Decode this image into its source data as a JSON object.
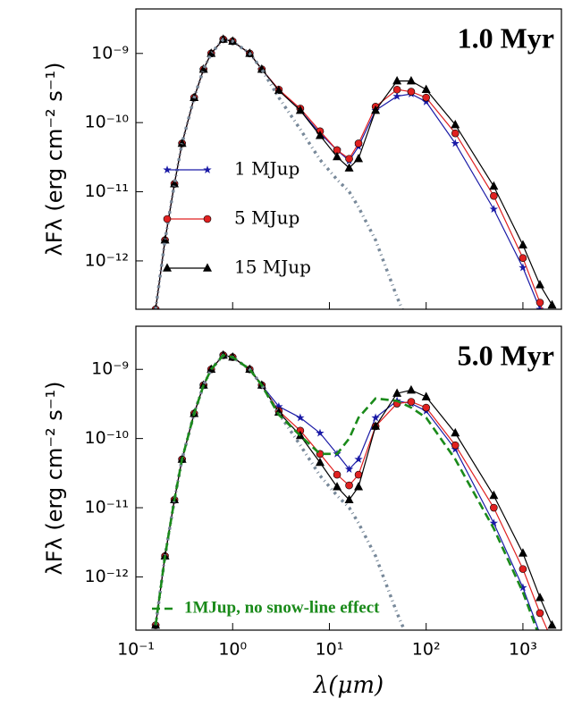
{
  "chart_data": [
    {
      "type": "line",
      "title": "1.0 Myr",
      "y_label": "λFλ (erg cm⁻² s⁻¹)",
      "xscale": "log",
      "yscale": "log",
      "xlim": [
        0.1,
        2500
      ],
      "ylim": [
        2e-13,
        4.4e-09
      ],
      "xticks": [
        0.1,
        1,
        10,
        100,
        1000
      ],
      "show_xtick_labels": false,
      "yticks": [
        {
          "value": 1e-12,
          "label": "10⁻¹²"
        },
        {
          "value": 1e-11,
          "label": "10⁻¹¹"
        },
        {
          "value": 1e-10,
          "label": "10⁻¹⁰"
        },
        {
          "value": 1e-09,
          "label": "10⁻⁹"
        }
      ],
      "x": [
        0.16,
        0.2,
        0.25,
        0.3,
        0.4,
        0.5,
        0.6,
        0.8,
        1,
        1.5,
        2,
        3,
        5,
        8,
        12,
        16,
        20,
        30,
        50,
        70,
        100,
        200,
        500,
        1000,
        1500,
        2000
      ],
      "series": [
        {
          "name": "1 MJup",
          "color": "#1a1aa6",
          "marker": "star",
          "linestyle": "solid",
          "values": [
            2e-13,
            2e-12,
            1.3e-11,
            5e-11,
            2.3e-10,
            5.9e-10,
            1e-09,
            1.6e-09,
            1.5e-09,
            1e-09,
            5.9e-10,
            3e-10,
            1.5e-10,
            7e-11,
            4e-11,
            2.8e-11,
            4.5e-11,
            1.5e-10,
            2.4e-10,
            2.6e-10,
            2e-10,
            5e-11,
            5.6e-12,
            8e-13,
            2e-13,
            5e-14
          ]
        },
        {
          "name": "5 MJup",
          "color": "#e02020",
          "marker": "circle",
          "linestyle": "solid",
          "values": [
            2e-13,
            2e-12,
            1.3e-11,
            5e-11,
            2.3e-10,
            5.9e-10,
            1e-09,
            1.6e-09,
            1.5e-09,
            1e-09,
            5.9e-10,
            3e-10,
            1.6e-10,
            7.5e-11,
            4e-11,
            3e-11,
            5e-11,
            1.7e-10,
            3e-10,
            2.8e-10,
            2.3e-10,
            7e-11,
            8.7e-12,
            1.1e-12,
            2.5e-13,
            8e-14
          ]
        },
        {
          "name": "15 MJup",
          "color": "#000000",
          "marker": "triangle",
          "linestyle": "solid",
          "values": [
            2e-13,
            2e-12,
            1.3e-11,
            5e-11,
            2.3e-10,
            5.9e-10,
            1e-09,
            1.6e-09,
            1.5e-09,
            1e-09,
            5.9e-10,
            2.9e-10,
            1.5e-10,
            6.5e-11,
            3.2e-11,
            2.2e-11,
            3e-11,
            1.5e-10,
            4e-10,
            4e-10,
            3e-10,
            9.3e-11,
            1.2e-11,
            1.7e-12,
            4.5e-13,
            2.3e-13
          ]
        },
        {
          "color": "#778899",
          "marker": null,
          "linestyle": "dashdot",
          "values": [
            2e-13,
            2e-12,
            1.3e-11,
            5e-11,
            2.3e-10,
            5.9e-10,
            1e-09,
            1.6e-09,
            1.5e-09,
            1e-09,
            5.9e-10,
            2.3e-10,
            8e-11,
            2.9e-11,
            1.5e-11,
            1e-11,
            6e-12,
            2e-12,
            3e-13,
            1e-13,
            null,
            null,
            null,
            null,
            null,
            null
          ]
        }
      ]
    },
    {
      "type": "line",
      "title": "5.0 Myr",
      "y_label": "λFλ (erg cm⁻² s⁻¹)",
      "x_label": "λ(μm)",
      "xscale": "log",
      "yscale": "log",
      "xlim": [
        0.1,
        2500
      ],
      "ylim": [
        1.7e-13,
        4.2e-09
      ],
      "xticks": [
        {
          "value": 0.1,
          "label": "10⁻¹"
        },
        {
          "value": 1,
          "label": "10⁰"
        },
        {
          "value": 10,
          "label": "10¹"
        },
        {
          "value": 100,
          "label": "10²"
        },
        {
          "value": 1000,
          "label": "10³"
        }
      ],
      "show_xtick_labels": true,
      "yticks": [
        {
          "value": 1e-12,
          "label": "10⁻¹²"
        },
        {
          "value": 1e-11,
          "label": "10⁻¹¹"
        },
        {
          "value": 1e-10,
          "label": "10⁻¹⁰"
        },
        {
          "value": 1e-09,
          "label": "10⁻⁹"
        }
      ],
      "x": [
        0.16,
        0.2,
        0.25,
        0.3,
        0.4,
        0.5,
        0.6,
        0.8,
        1,
        1.5,
        2,
        3,
        5,
        8,
        12,
        16,
        20,
        30,
        50,
        70,
        100,
        200,
        500,
        1000,
        1500,
        2000
      ],
      "series": [
        {
          "color": "#1a1aa6",
          "marker": "star",
          "linestyle": "solid",
          "values": [
            2e-13,
            2e-12,
            1.3e-11,
            5e-11,
            2.3e-10,
            5.9e-10,
            1e-09,
            1.6e-09,
            1.5e-09,
            1e-09,
            5.9e-10,
            2.9e-10,
            2e-10,
            1.2e-10,
            6e-11,
            3.6e-11,
            5e-11,
            2e-10,
            3.5e-10,
            3.2e-10,
            2.5e-10,
            7e-11,
            6e-12,
            7e-13,
            1.5e-13,
            4e-14
          ]
        },
        {
          "color": "#e02020",
          "marker": "circle",
          "linestyle": "solid",
          "values": [
            2e-13,
            2e-12,
            1.3e-11,
            5e-11,
            2.3e-10,
            5.9e-10,
            1e-09,
            1.6e-09,
            1.5e-09,
            1e-09,
            5.9e-10,
            2.5e-10,
            1.3e-10,
            6e-11,
            3e-11,
            2.1e-11,
            3e-11,
            1.5e-10,
            3.2e-10,
            3.4e-10,
            2.8e-10,
            8e-11,
            1e-11,
            1.3e-12,
            3e-13,
            1.2e-13
          ]
        },
        {
          "color": "#000000",
          "marker": "triangle",
          "linestyle": "solid",
          "values": [
            2e-13,
            2e-12,
            1.3e-11,
            5e-11,
            2.3e-10,
            5.9e-10,
            1e-09,
            1.6e-09,
            1.5e-09,
            1e-09,
            5.9e-10,
            2.4e-10,
            1.1e-10,
            4.5e-11,
            2e-11,
            1.3e-11,
            2e-11,
            1.5e-10,
            4.5e-10,
            5e-10,
            4e-10,
            1.2e-10,
            1.5e-11,
            2.2e-12,
            5e-13,
            2e-13
          ]
        },
        {
          "color": "#778899",
          "marker": null,
          "linestyle": "dashdot",
          "values": [
            2e-13,
            2e-12,
            1.3e-11,
            5e-11,
            2.3e-10,
            5.9e-10,
            1e-09,
            1.6e-09,
            1.5e-09,
            1e-09,
            5.9e-10,
            2.3e-10,
            8e-11,
            2.9e-11,
            1.5e-11,
            1e-11,
            6e-12,
            2e-12,
            3e-13,
            1e-13,
            null,
            null,
            null,
            null,
            null,
            null
          ]
        },
        {
          "name": "1MJup, no snow-line effect",
          "color": "#1a8a1a",
          "marker": null,
          "linestyle": "dashed",
          "values": [
            2e-13,
            2e-12,
            1.3e-11,
            5e-11,
            2.3e-10,
            5.9e-10,
            1e-09,
            1.6e-09,
            1.5e-09,
            1e-09,
            5.9e-10,
            2.2e-10,
            1.1e-10,
            6e-11,
            6e-11,
            1e-10,
            2e-10,
            3.8e-10,
            3.5e-10,
            2.8e-10,
            2e-10,
            5e-11,
            5e-12,
            6e-13,
            1.3e-13,
            null
          ]
        }
      ]
    }
  ]
}
